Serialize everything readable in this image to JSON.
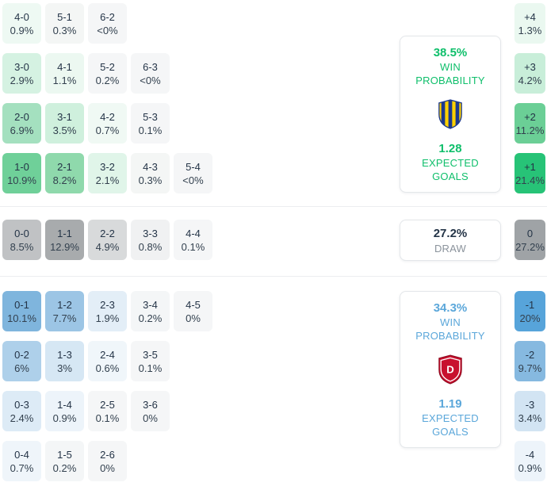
{
  "chart_data": {
    "type": "heatmap",
    "title": "Correct score probability matrix with win probabilities and expected goals",
    "legend_position": "right",
    "accent_colors": {
      "home_green": "#0fbf6b",
      "away_blue": "#5ba7da",
      "draw_gray": "#8b939c",
      "text_dark": "#243447"
    },
    "home": {
      "panel": {
        "pct": "38.5%",
        "win_line1": "WIN",
        "win_line2": "PROBABILITY",
        "xg": "1.28",
        "xg_line1": "EXPECTED",
        "xg_line2": "GOALS"
      },
      "logo_icon": "yellow-blue-striped-shield-crest-icon",
      "rows": [
        [
          {
            "score": "4-0",
            "pct": "0.9%",
            "bg": "#eef9f3"
          },
          {
            "score": "5-1",
            "pct": "0.3%",
            "bg": "#f4f6f5"
          },
          {
            "score": "6-2",
            "pct": "<0%",
            "bg": "#f5f6f7"
          }
        ],
        [
          {
            "score": "3-0",
            "pct": "2.9%",
            "bg": "#d5f2e2"
          },
          {
            "score": "4-1",
            "pct": "1.1%",
            "bg": "#ecf8f1"
          },
          {
            "score": "5-2",
            "pct": "0.2%",
            "bg": "#f5f6f7"
          },
          {
            "score": "6-3",
            "pct": "<0%",
            "bg": "#f5f6f7"
          }
        ],
        [
          {
            "score": "2-0",
            "pct": "6.9%",
            "bg": "#a4e0bf"
          },
          {
            "score": "3-1",
            "pct": "3.5%",
            "bg": "#cff0dd"
          },
          {
            "score": "4-2",
            "pct": "0.7%",
            "bg": "#f0f9f4"
          },
          {
            "score": "5-3",
            "pct": "0.1%",
            "bg": "#f5f6f7"
          }
        ],
        [
          {
            "score": "1-0",
            "pct": "10.9%",
            "bg": "#6fd099"
          },
          {
            "score": "2-1",
            "pct": "8.2%",
            "bg": "#8fd9ac"
          },
          {
            "score": "3-2",
            "pct": "2.1%",
            "bg": "#e0f5e9"
          },
          {
            "score": "4-3",
            "pct": "0.3%",
            "bg": "#f4f6f5"
          },
          {
            "score": "5-4",
            "pct": "<0%",
            "bg": "#f5f6f7"
          }
        ]
      ],
      "margins": [
        {
          "margin": "+4",
          "pct": "1.3%",
          "bg": "#eaf8f0"
        },
        {
          "margin": "+3",
          "pct": "4.2%",
          "bg": "#c8eed9"
        },
        {
          "margin": "+2",
          "pct": "11.2%",
          "bg": "#6bcf96"
        },
        {
          "margin": "+1",
          "pct": "21.4%",
          "bg": "#27c377"
        }
      ]
    },
    "draw": {
      "panel": {
        "pct": "27.2%",
        "label": "DRAW"
      },
      "cells": [
        {
          "score": "0-0",
          "pct": "8.5%",
          "bg": "#c0c2c4"
        },
        {
          "score": "1-1",
          "pct": "12.9%",
          "bg": "#a8abad"
        },
        {
          "score": "2-2",
          "pct": "4.9%",
          "bg": "#d8dadb"
        },
        {
          "score": "3-3",
          "pct": "0.8%",
          "bg": "#f0f1f2"
        },
        {
          "score": "4-4",
          "pct": "0.1%",
          "bg": "#f5f6f7"
        }
      ],
      "margin": {
        "margin": "0",
        "pct": "27.2%",
        "bg": "#9fa3a6"
      }
    },
    "away": {
      "panel": {
        "pct": "34.3%",
        "win_line1": "WIN",
        "win_line2": "PROBABILITY",
        "xg": "1.19",
        "xg_line1": "EXPECTED",
        "xg_line2": "GOALS"
      },
      "logo_icon": "red-shield-crest-icon",
      "rows": [
        [
          {
            "score": "0-1",
            "pct": "10.1%",
            "bg": "#7fb5dd"
          },
          {
            "score": "1-2",
            "pct": "7.7%",
            "bg": "#9cc5e5"
          },
          {
            "score": "2-3",
            "pct": "1.9%",
            "bg": "#e3eef7"
          },
          {
            "score": "3-4",
            "pct": "0.2%",
            "bg": "#f4f6f7"
          },
          {
            "score": "4-5",
            "pct": "0%",
            "bg": "#f5f6f7"
          }
        ],
        [
          {
            "score": "0-2",
            "pct": "6%",
            "bg": "#aed0ea"
          },
          {
            "score": "1-3",
            "pct": "3%",
            "bg": "#d6e7f4"
          },
          {
            "score": "2-4",
            "pct": "0.6%",
            "bg": "#f0f6fa"
          },
          {
            "score": "3-5",
            "pct": "0.1%",
            "bg": "#f5f6f7"
          }
        ],
        [
          {
            "score": "0-3",
            "pct": "2.4%",
            "bg": "#ddebf6"
          },
          {
            "score": "1-4",
            "pct": "0.9%",
            "bg": "#edf4fa"
          },
          {
            "score": "2-5",
            "pct": "0.1%",
            "bg": "#f5f6f7"
          },
          {
            "score": "3-6",
            "pct": "0%",
            "bg": "#f5f6f7"
          }
        ],
        [
          {
            "score": "0-4",
            "pct": "0.7%",
            "bg": "#eff5fa"
          },
          {
            "score": "1-5",
            "pct": "0.2%",
            "bg": "#f4f6f7"
          },
          {
            "score": "2-6",
            "pct": "0%",
            "bg": "#f5f6f7"
          }
        ]
      ],
      "margins": [
        {
          "margin": "-1",
          "pct": "20%",
          "bg": "#57a4da"
        },
        {
          "margin": "-2",
          "pct": "9.7%",
          "bg": "#86b9e0"
        },
        {
          "margin": "-3",
          "pct": "3.4%",
          "bg": "#d2e4f3"
        },
        {
          "margin": "-4",
          "pct": "0.9%",
          "bg": "#edf4fa"
        }
      ]
    }
  }
}
